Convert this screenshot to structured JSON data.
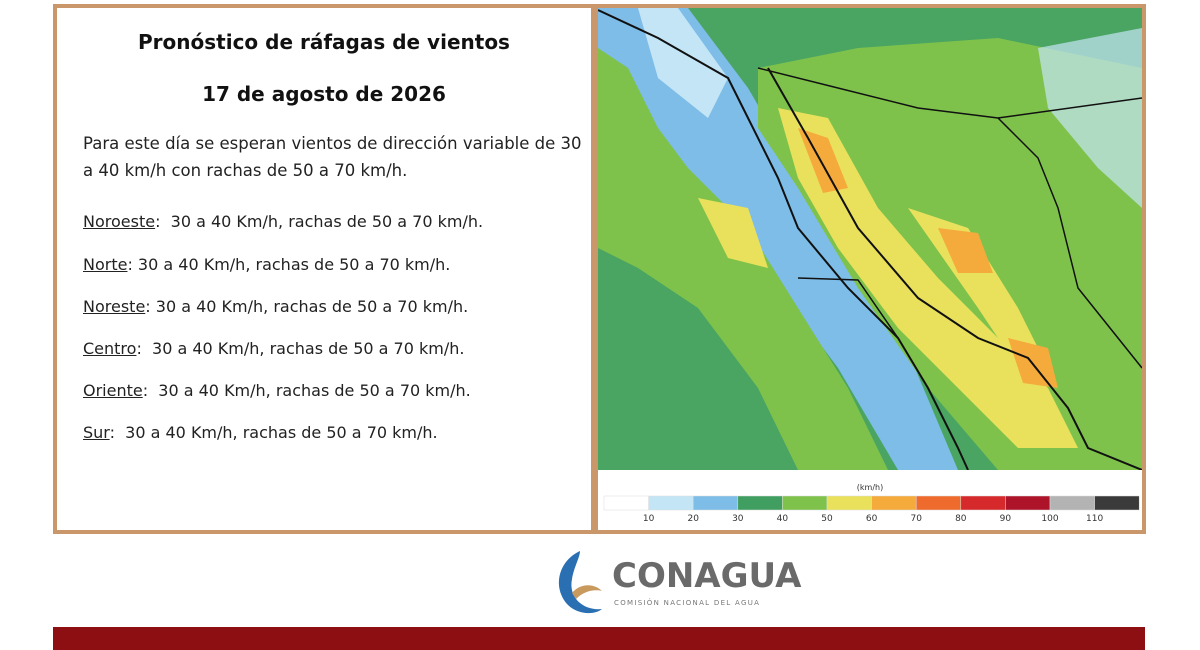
{
  "header": {
    "title": "Pronóstico de ráfagas de vientos",
    "date": "17 de agosto de 2026"
  },
  "intro": "Para este día se esperan vientos de dirección variable de 30 a 40 km/h con rachas de 50 a 70 km/h.",
  "regions": [
    {
      "name": "Noroeste",
      "text": ":  30 a 40 Km/h, rachas de 50 a 70 km/h."
    },
    {
      "name": "Norte",
      "text": ": 30 a 40 Km/h, rachas de 50 a 70 km/h."
    },
    {
      "name": "Noreste",
      "text": ": 30 a 40 Km/h, rachas de 50 a 70 km/h."
    },
    {
      "name": "Centro",
      "text": ":  30 a 40 Km/h, rachas de 50 a 70 km/h."
    },
    {
      "name": "Oriente",
      "text": ":  30 a 40 Km/h, rachas de 50 a 70 km/h."
    },
    {
      "name": "Sur",
      "text": ":  30 a 40 Km/h, rachas de 50 a 70 km/h."
    }
  ],
  "legend": {
    "unit": "(km/h)",
    "ticks": [
      10,
      20,
      30,
      40,
      50,
      60,
      70,
      80,
      90,
      100,
      110
    ],
    "colors": [
      "#ffffff",
      "#c4e5f6",
      "#7dbde7",
      "#3f9e60",
      "#7ec24b",
      "#e9e15c",
      "#f5aa3c",
      "#ee6b2d",
      "#d6292b",
      "#ad1329",
      "#b3b3b3",
      "#3a3a3a"
    ]
  },
  "logo": {
    "name": "CONAGUA",
    "subtitle": "COMISIÓN NACIONAL DEL AGUA"
  }
}
